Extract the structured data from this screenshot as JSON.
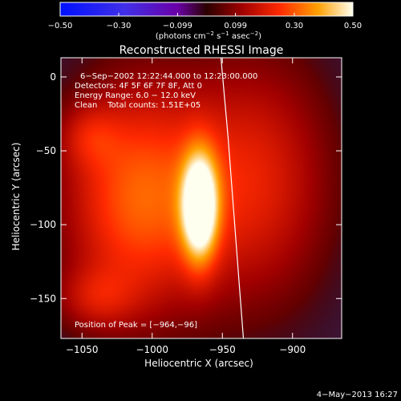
{
  "chart_data": {
    "type": "heatmap",
    "title": "Reconstructed RHESSI Image",
    "xlabel": "Heliocentric X (arcsec)",
    "ylabel": "Heliocentric Y (arcsec)",
    "xlim": [
      -1065,
      -865
    ],
    "ylim": [
      -177,
      13
    ],
    "xticks": [
      -1050,
      -1000,
      -950,
      -900
    ],
    "xtick_labels": [
      "−1050",
      "−1000",
      "−950",
      "−900"
    ],
    "yticks": [
      0,
      -50,
      -100,
      -150
    ],
    "ytick_labels": [
      "0",
      "−50",
      "−100",
      "−150"
    ],
    "colorbar": {
      "range": [
        -0.5,
        0.5
      ],
      "tick_values": [
        -0.5,
        -0.3,
        -0.099,
        0.099,
        0.3,
        0.5
      ],
      "tick_labels": [
        "−0.50",
        "−0.30",
        "−0.099",
        "0.099",
        "0.30",
        "0.50"
      ],
      "label_parts": [
        "(photons cm",
        "−2",
        " s",
        "−1",
        " asec",
        "−2",
        ")"
      ],
      "colormap": "rainbow-red-yellow-white"
    },
    "annotations": [
      "6−Sep−2002 12:22:44.000 to 12:23:00.000",
      "Detectors: 4F 5F 6F 7F 8F, Att 0",
      "Energy Range: 6.0 − 12.0 keV",
      "Clean    Total counts: 1.51E+05"
    ],
    "peak_label": "Position of Peak = [−964,−96]",
    "peak": [
      -964,
      -96
    ],
    "sources": [
      {
        "x": -966,
        "y": -88,
        "sx": 9,
        "sy": 26,
        "amp": 0.48
      },
      {
        "x": -1010,
        "y": -82,
        "sx": 38,
        "sy": 55,
        "amp": 0.3
      },
      {
        "x": -925,
        "y": -70,
        "sx": 38,
        "sy": 60,
        "amp": 0.2
      },
      {
        "x": -1040,
        "y": -150,
        "sx": 20,
        "sy": 15,
        "amp": 0.12
      },
      {
        "x": -1045,
        "y": -40,
        "sx": 15,
        "sy": 15,
        "amp": 0.1
      }
    ],
    "limb_curve": [
      [
        -951,
        13
      ],
      [
        -946,
        -40
      ],
      [
        -942,
        -90
      ],
      [
        -938,
        -140
      ],
      [
        -935,
        -177
      ]
    ],
    "footer_date": "4−May−2013 16:27"
  }
}
